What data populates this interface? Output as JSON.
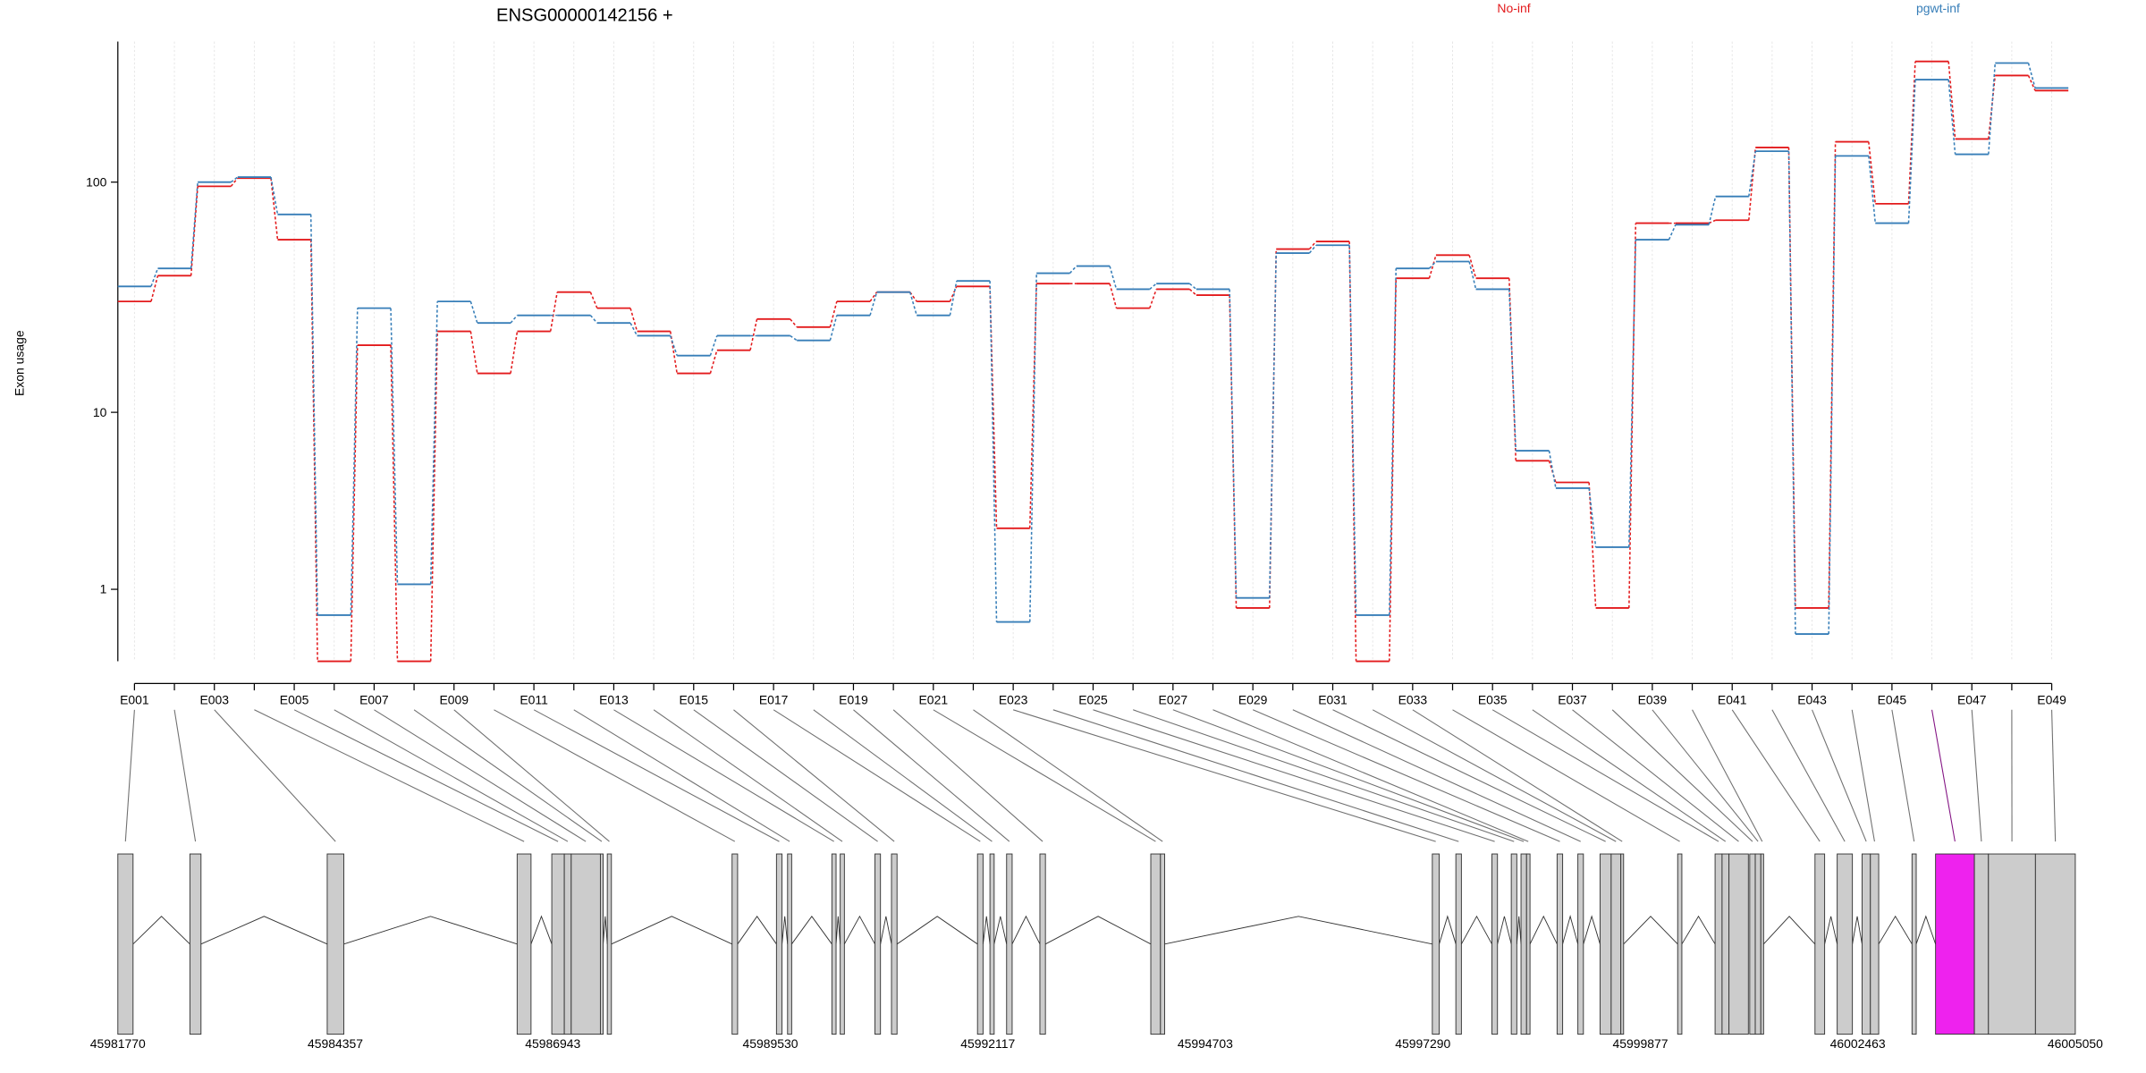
{
  "chart_data": [
    {
      "type": "step",
      "title": "ENSG00000142156 +",
      "ylabel": "Exon usage",
      "yscale": "log1p",
      "ylim": [
        0,
        390
      ],
      "yticks": [
        1,
        10,
        100
      ],
      "grid": true,
      "legend": "top",
      "categories": [
        "E001",
        null,
        "E003",
        null,
        "E005",
        null,
        "E007",
        null,
        "E009",
        null,
        "E011",
        null,
        "E013",
        null,
        "E015",
        null,
        "E017",
        null,
        "E019",
        null,
        "E021",
        null,
        "E023",
        null,
        "E025",
        null,
        "E027",
        null,
        "E029",
        null,
        "E031",
        null,
        "E033",
        null,
        "E035",
        null,
        "E037",
        null,
        "E039",
        null,
        "E041",
        null,
        "E043",
        null,
        "E045",
        null,
        "E047",
        null,
        "E049"
      ],
      "series": [
        {
          "name": "No-inf",
          "color": "#e31a1c",
          "values": [
            31,
            40,
            96,
            104,
            57,
            0,
            20,
            0,
            23,
            15,
            23,
            34,
            29,
            23,
            15,
            19,
            26,
            24,
            31,
            34,
            31,
            36,
            2.6,
            37,
            37,
            29,
            35,
            33,
            0.67,
            52,
            56,
            0,
            39,
            49,
            39,
            5.9,
            4.6,
            0.67,
            67,
            67,
            69,
            140,
            0.67,
            148,
            81,
            322,
            152,
            281,
            243
          ]
        },
        {
          "name": "pgwt-inf",
          "color": "#377eb8",
          "values": [
            36,
            43,
            100,
            105,
            73,
            0.56,
            29,
            1.1,
            31,
            25,
            27,
            27,
            25,
            22,
            18,
            22,
            22,
            21,
            27,
            34,
            27,
            38,
            0.46,
            41,
            44,
            35,
            37,
            35,
            0.84,
            50,
            54,
            0.56,
            43,
            46,
            35,
            6.6,
            4.3,
            2.0,
            57,
            66,
            87,
            135,
            0.3,
            129,
            67,
            270,
            131,
            317,
            249
          ]
        }
      ]
    },
    {
      "type": "gene_model",
      "xlim": [
        45981770,
        46005050
      ],
      "xticks": [
        45981770,
        45984357,
        45986943,
        45989530,
        45992117,
        45994703,
        45997290,
        45999877,
        46002463,
        46005050
      ],
      "exons": [
        [
          45981770,
          45981951
        ],
        [
          45982627,
          45982759
        ],
        [
          45984260,
          45984458
        ],
        [
          45986519,
          45986684
        ],
        [
          45986931,
          45987080
        ],
        [
          45987080,
          45987162
        ],
        [
          45987162,
          45987509
        ],
        [
          45987509,
          45987542
        ],
        [
          45987591,
          45987640
        ],
        [
          45989075,
          45989141
        ],
        [
          45989603,
          45989669
        ],
        [
          45989735,
          45989784
        ],
        [
          45990262,
          45990312
        ],
        [
          45990361,
          45990411
        ],
        [
          45990774,
          45990840
        ],
        [
          45990971,
          45991037
        ],
        [
          45991994,
          45992060
        ],
        [
          45992142,
          45992192
        ],
        [
          45992340,
          45992406
        ],
        [
          45992736,
          45992802
        ],
        [
          45994055,
          45994170
        ],
        [
          45994170,
          45994220
        ],
        [
          45997403,
          45997485
        ],
        [
          45997683,
          45997749
        ],
        [
          45998112,
          45998178
        ],
        [
          45998342,
          45998408
        ],
        [
          45998458,
          45998524
        ],
        [
          45998524,
          45998565
        ],
        [
          45998887,
          45998953
        ],
        [
          45999134,
          45999200
        ],
        [
          45999398,
          45999530
        ],
        [
          45999530,
          45999645
        ],
        [
          45999645,
          45999678
        ],
        [
          46000321,
          46000371
        ],
        [
          46000766,
          46000849
        ],
        [
          46000849,
          46000931
        ],
        [
          46000931,
          46001162
        ],
        [
          46001178,
          46001244
        ],
        [
          46001244,
          46001310
        ],
        [
          46001310,
          46001343
        ],
        [
          46001954,
          46002069
        ],
        [
          46002218,
          46002399
        ],
        [
          46002514,
          46002613
        ],
        [
          46002613,
          46002712
        ],
        [
          46003108,
          46003158
        ],
        [
          46003388,
          46003850
        ],
        [
          46003850,
          46004017
        ],
        [
          46004017,
          46004576
        ],
        [
          46004576,
          46005050
        ]
      ],
      "exon_colors": [
        "#cccccc",
        "#cccccc",
        "#cccccc",
        "#cccccc",
        "#cccccc",
        "#cccccc",
        "#cccccc",
        "#cccccc",
        "#cccccc",
        "#cccccc",
        "#cccccc",
        "#cccccc",
        "#cccccc",
        "#cccccc",
        "#cccccc",
        "#cccccc",
        "#cccccc",
        "#cccccc",
        "#cccccc",
        "#cccccc",
        "#cccccc",
        "#cccccc",
        "#cccccc",
        "#cccccc",
        "#cccccc",
        "#cccccc",
        "#cccccc",
        "#cccccc",
        "#cccccc",
        "#cccccc",
        "#cccccc",
        "#cccccc",
        "#cccccc",
        "#cccccc",
        "#cccccc",
        "#cccccc",
        "#cccccc",
        "#cccccc",
        "#cccccc",
        "#cccccc",
        "#cccccc",
        "#cccccc",
        "#cccccc",
        "#cccccc",
        "#cccccc",
        "#ee22ee",
        "#cccccc",
        "#cccccc",
        "#cccccc"
      ]
    }
  ]
}
